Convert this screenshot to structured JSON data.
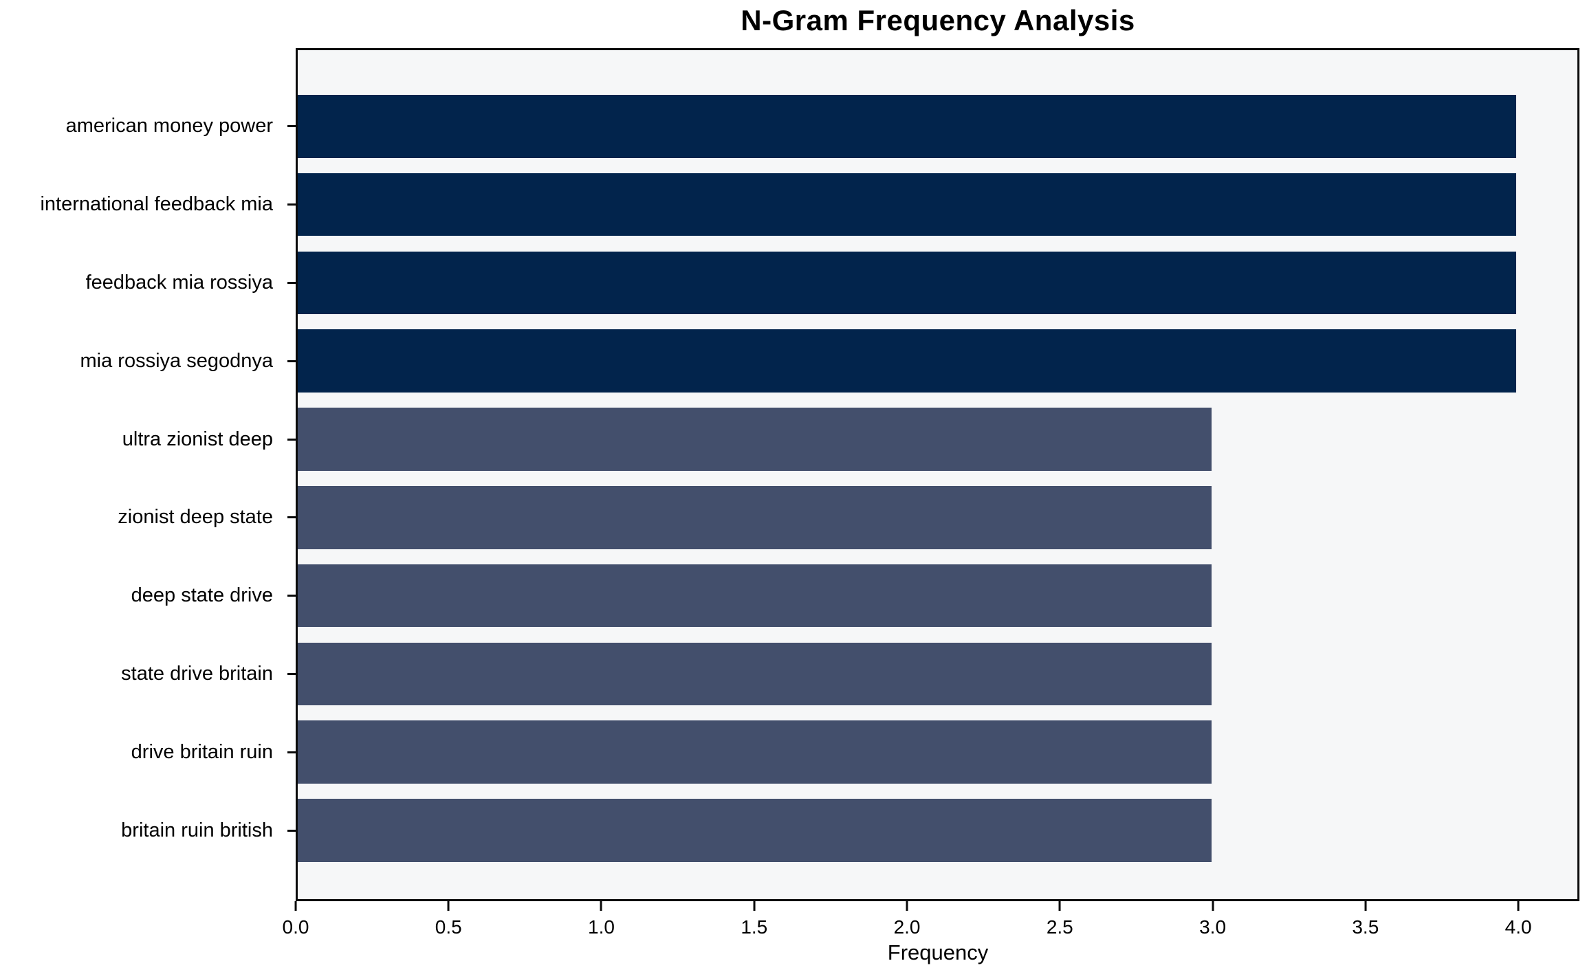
{
  "chart_data": {
    "type": "bar",
    "orientation": "horizontal",
    "title": "N-Gram Frequency Analysis",
    "xlabel": "Frequency",
    "ylabel": "",
    "categories": [
      "american money power",
      "international feedback mia",
      "feedback mia rossiya",
      "mia rossiya segodnya",
      "ultra zionist deep",
      "zionist deep state",
      "deep state drive",
      "state drive britain",
      "drive britain ruin",
      "britain ruin british"
    ],
    "values": [
      4,
      4,
      4,
      4,
      3,
      3,
      3,
      3,
      3,
      3
    ],
    "bar_colors": [
      "#02244c",
      "#02244c",
      "#02244c",
      "#02244c",
      "#434f6c",
      "#434f6c",
      "#434f6c",
      "#434f6c",
      "#434f6c",
      "#434f6c"
    ],
    "xlim": [
      0,
      4.2
    ],
    "x_ticks": [
      {
        "value": 0.0,
        "label": "0.0"
      },
      {
        "value": 0.5,
        "label": "0.5"
      },
      {
        "value": 1.0,
        "label": "1.0"
      },
      {
        "value": 1.5,
        "label": "1.5"
      },
      {
        "value": 2.0,
        "label": "2.0"
      },
      {
        "value": 2.5,
        "label": "2.5"
      },
      {
        "value": 3.0,
        "label": "3.0"
      },
      {
        "value": 3.5,
        "label": "3.5"
      },
      {
        "value": 4.0,
        "label": "4.0"
      }
    ],
    "grid": false,
    "legend": null,
    "colors": {
      "bar_high": "#02244c",
      "bar_low": "#434f6c",
      "plot_background": "#f6f7f8",
      "figure_background": "#ffffff",
      "axis": "#0b0b0b",
      "text": "#000000"
    }
  }
}
